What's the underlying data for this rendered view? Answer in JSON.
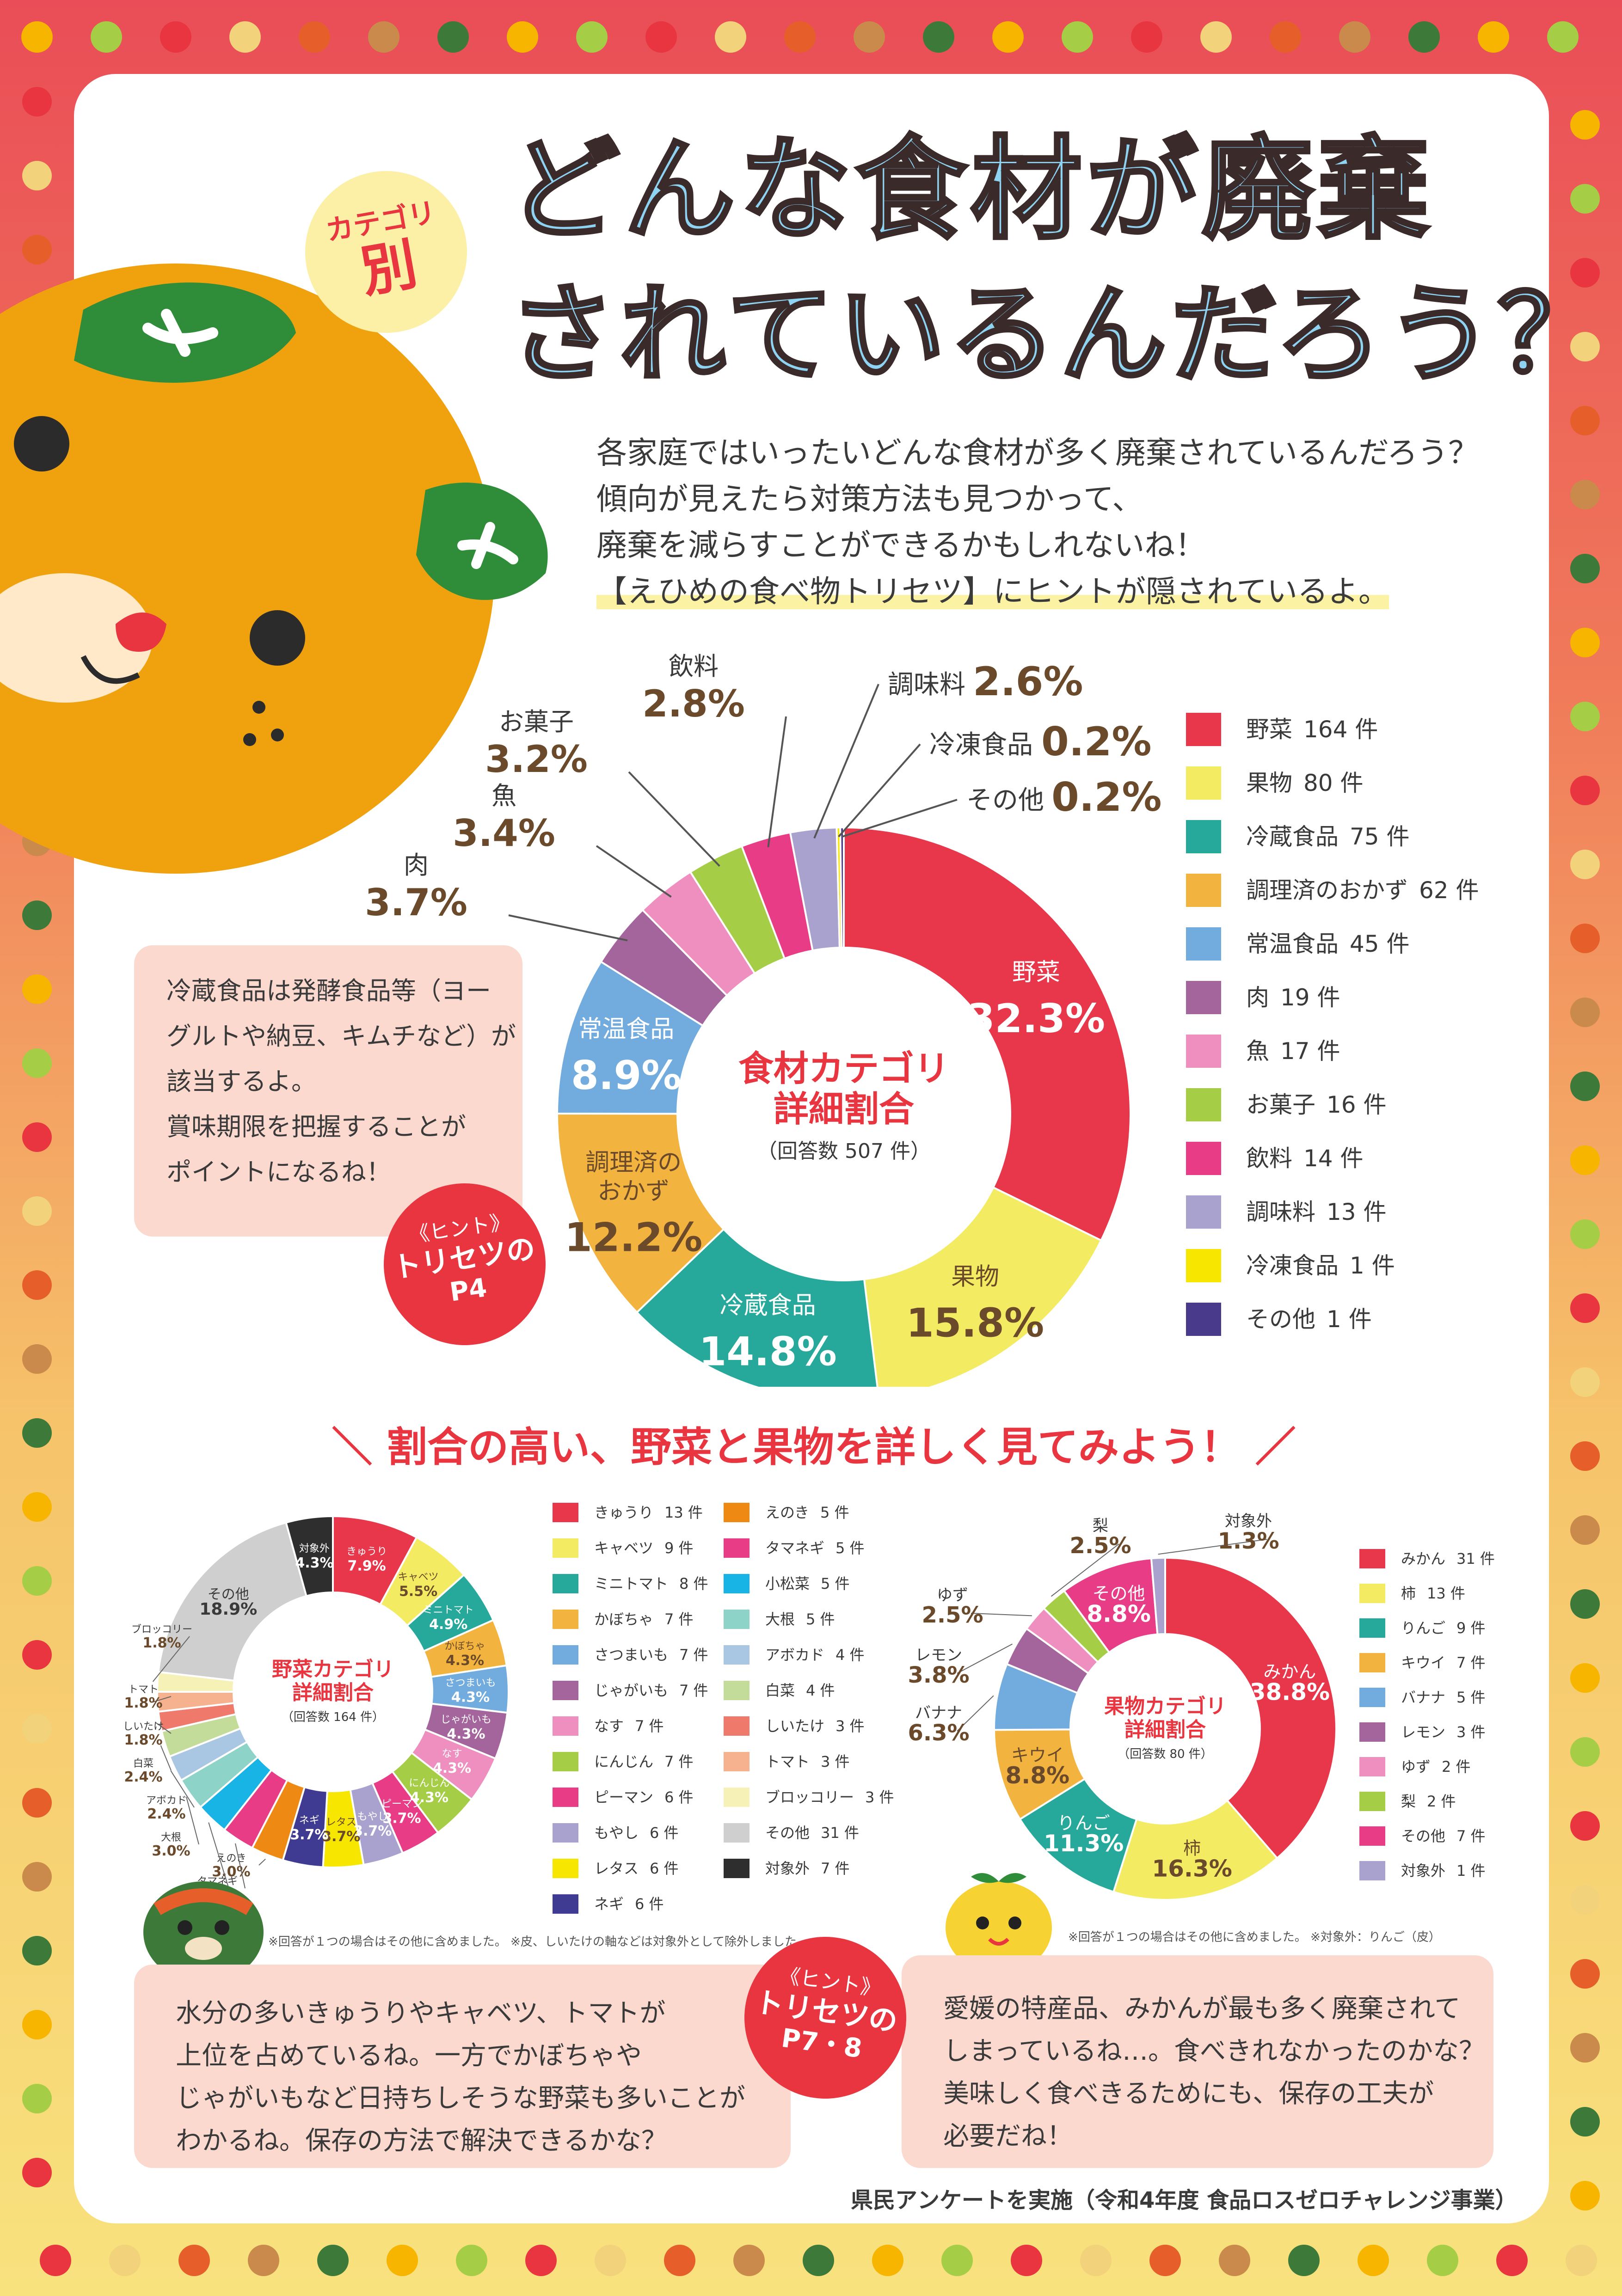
{
  "header": {
    "category_badge_line1": "カテゴリ",
    "category_badge_line2": "別",
    "title_line1": "どんな食材が廃棄",
    "title_line2": "されているんだろう？"
  },
  "intro": {
    "line1": "各家庭ではいったいどんな食材が多く廃棄されているんだろう？",
    "line2": "傾向が見えたら対策方法も見つかって、",
    "line3": "廃棄を減らすことができるかもしれないね！",
    "line4": "【えひめの食べ物トリセツ】にヒントが隠されているよ。"
  },
  "notes": {
    "refrigerated": [
      "冷蔵食品は発酵食品等（ヨー",
      "グルトや納豆、キムチなど）が",
      "該当するよ。",
      "賞味期限を把握することが",
      "ポイントになるね！"
    ],
    "vegetables": [
      "水分の多いきゅうりやキャベツ、トマトが",
      "上位を占めているね。一方でかぼちゃや",
      "じゃがいもなど日持ちしそうな野菜も多いことが",
      "わかるね。保存の方法で解決できるかな？"
    ],
    "fruits": [
      "愛媛の特産品、みかんが最も多く廃棄されて",
      "しまっているね…。食べきれなかったのかな？",
      "美味しく食べきるためにも、保存の工夫が",
      "必要だね！"
    ]
  },
  "badges": {
    "hint1": {
      "l1": "《ヒント》",
      "l2": "トリセツの",
      "l3": "P4"
    },
    "hint2": {
      "l1": "《ヒント》",
      "l2": "トリセツの",
      "l3": "P7・8"
    }
  },
  "section_heading": "＼ 割合の高い、野菜と果物を詳しく見てみよう！ ／",
  "footnotes": {
    "veg": "※回答が１つの場合はその他に含めました。 ※皮、しいたけの軸などは対象外として除外しました。",
    "fruit": "※回答が１つの場合はその他に含めました。 ※対象外：りんご（皮）",
    "survey": "県民アンケートを実施（令和4年度 食品ロスゼロチャレンジ事業）"
  },
  "colors": {
    "frame_top": "#ea4d57",
    "frame_bottom": "#f8e27e",
    "accent_red": "#e8353f",
    "title_blue": "#8fd3f3",
    "note_bg": "#fbd9cf"
  },
  "icons": [
    "mikan-mascot-icon",
    "carrot-icon",
    "tomato-icon",
    "mushroom-icon",
    "broccoli-icon",
    "fish-icon",
    "egg-icon",
    "potato-icon"
  ],
  "chart_data": [
    {
      "type": "donut",
      "center_title_line1": "食材カテゴリ",
      "center_title_line2": "詳細割合",
      "center_subtitle": "（回答数 507 件）",
      "slices": [
        {
          "label": "野菜",
          "count": "164 件",
          "count_value": 164,
          "pct": "32.3%",
          "value": 32.3,
          "color": "#e8364b"
        },
        {
          "label": "果物",
          "count": "80 件",
          "count_value": 80,
          "pct": "15.8%",
          "value": 15.8,
          "color": "#f3eb62"
        },
        {
          "label": "冷蔵食品",
          "count": "75 件",
          "count_value": 75,
          "pct": "14.8%",
          "value": 14.8,
          "color": "#26a99a"
        },
        {
          "label": "調理済のおかず",
          "label_lines": [
            "調理済の",
            "おかず"
          ],
          "count": "62 件",
          "count_value": 62,
          "pct": "12.2%",
          "value": 12.2,
          "color": "#f2b43f"
        },
        {
          "label": "常温食品",
          "count": "45 件",
          "count_value": 45,
          "pct": "8.9%",
          "value": 8.9,
          "color": "#72acdf"
        },
        {
          "label": "肉",
          "count": "19 件",
          "count_value": 19,
          "pct": "3.7%",
          "value": 3.7,
          "color": "#a4659c"
        },
        {
          "label": "魚",
          "count": "17 件",
          "count_value": 17,
          "pct": "3.4%",
          "value": 3.4,
          "color": "#ee8fc0"
        },
        {
          "label": "お菓子",
          "count": "16 件",
          "count_value": 16,
          "pct": "3.2%",
          "value": 3.2,
          "color": "#a5cd45"
        },
        {
          "label": "飲料",
          "count": "14 件",
          "count_value": 14,
          "pct": "2.8%",
          "value": 2.8,
          "color": "#e83d86"
        },
        {
          "label": "調味料",
          "count": "13 件",
          "count_value": 13,
          "pct": "2.6%",
          "value": 2.6,
          "color": "#a9a2cf"
        },
        {
          "label": "冷凍食品",
          "count": "1 件",
          "count_value": 1,
          "pct": "0.2%",
          "value": 0.2,
          "color": "#f7e600"
        },
        {
          "label": "その他",
          "count": "1 件",
          "count_value": 1,
          "pct": "0.2%",
          "value": 0.2,
          "color": "#4a3a8c"
        }
      ]
    },
    {
      "type": "donut",
      "center_title_line1": "野菜カテゴリ",
      "center_title_line2": "詳細割合",
      "center_subtitle": "（回答数 164 件）",
      "slices": [
        {
          "label": "きゅうり",
          "count": "13 件",
          "count_value": 13,
          "pct": "7.9%",
          "value": 7.9,
          "color": "#e8364b"
        },
        {
          "label": "キャベツ",
          "count": "9 件",
          "count_value": 9,
          "pct": "5.5%",
          "value": 5.5,
          "color": "#f3eb62"
        },
        {
          "label": "ミニトマト",
          "count": "8 件",
          "count_value": 8,
          "pct": "4.9%",
          "value": 4.9,
          "color": "#26a99a"
        },
        {
          "label": "かぼちゃ",
          "count": "7 件",
          "count_value": 7,
          "pct": "4.3%",
          "value": 4.3,
          "color": "#f2b43f"
        },
        {
          "label": "さつまいも",
          "count": "7 件",
          "count_value": 7,
          "pct": "4.3%",
          "value": 4.3,
          "color": "#72acdf"
        },
        {
          "label": "じゃがいも",
          "count": "7 件",
          "count_value": 7,
          "pct": "4.3%",
          "value": 4.3,
          "color": "#a4659c"
        },
        {
          "label": "なす",
          "count": "7 件",
          "count_value": 7,
          "pct": "4.3%",
          "value": 4.3,
          "color": "#ee8fc0"
        },
        {
          "label": "にんじん",
          "count": "7 件",
          "count_value": 7,
          "pct": "4.3%",
          "value": 4.3,
          "color": "#a5cd45"
        },
        {
          "label": "ピーマン",
          "count": "6 件",
          "count_value": 6,
          "pct": "3.7%",
          "value": 3.7,
          "color": "#e83d86"
        },
        {
          "label": "もやし",
          "count": "6 件",
          "count_value": 6,
          "pct": "3.7%",
          "value": 3.7,
          "color": "#a9a2cf"
        },
        {
          "label": "レタス",
          "count": "6 件",
          "count_value": 6,
          "pct": "3.7%",
          "value": 3.7,
          "color": "#f7e600"
        },
        {
          "label": "ネギ",
          "count": "6 件",
          "count_value": 6,
          "pct": "3.7%",
          "value": 3.7,
          "color": "#3f3a92"
        },
        {
          "label": "えのき",
          "count": "5 件",
          "count_value": 5,
          "pct": "3.0%",
          "value": 3.0,
          "color": "#ee8a13"
        },
        {
          "label": "タマネギ",
          "count": "5 件",
          "count_value": 5,
          "pct": "3.0%",
          "value": 3.0,
          "color": "#e83d86"
        },
        {
          "label": "小松菜",
          "count": "5 件",
          "count_value": 5,
          "pct": "3.0%",
          "value": 3.0,
          "color": "#19b4e6"
        },
        {
          "label": "大根",
          "count": "5 件",
          "count_value": 5,
          "pct": "3.0%",
          "value": 3.0,
          "color": "#8ed3c8"
        },
        {
          "label": "アボカド",
          "count": "4 件",
          "count_value": 4,
          "pct": "2.4%",
          "value": 2.4,
          "color": "#a9c7e3"
        },
        {
          "label": "白菜",
          "count": "4 件",
          "count_value": 4,
          "pct": "2.4%",
          "value": 2.4,
          "color": "#c4dc9a"
        },
        {
          "label": "しいたけ",
          "count": "3 件",
          "count_value": 3,
          "pct": "1.8%",
          "value": 1.8,
          "color": "#ef7a6b"
        },
        {
          "label": "トマト",
          "count": "3 件",
          "count_value": 3,
          "pct": "1.8%",
          "value": 1.8,
          "color": "#f6b28f"
        },
        {
          "label": "ブロッコリー",
          "count": "3 件",
          "count_value": 3,
          "pct": "1.8%",
          "value": 1.8,
          "color": "#f6f1b6"
        },
        {
          "label": "その他",
          "count": "31 件",
          "count_value": 31,
          "pct": "18.9%",
          "value": 18.9,
          "color": "#cfcfcf"
        },
        {
          "label": "対象外",
          "count": "7 件",
          "count_value": 7,
          "pct": "4.3%",
          "value": 4.3,
          "color": "#2e2e2e"
        }
      ]
    },
    {
      "type": "donut",
      "center_title_line1": "果物カテゴリ",
      "center_title_line2": "詳細割合",
      "center_subtitle": "（回答数 80 件）",
      "slices": [
        {
          "label": "みかん",
          "count": "31 件",
          "count_value": 31,
          "pct": "38.8%",
          "value": 38.8,
          "color": "#e8364b"
        },
        {
          "label": "柿",
          "count": "13 件",
          "count_value": 13,
          "pct": "16.3%",
          "value": 16.3,
          "color": "#f3eb62"
        },
        {
          "label": "りんご",
          "count": "9 件",
          "count_value": 9,
          "pct": "11.3%",
          "value": 11.3,
          "color": "#26a99a"
        },
        {
          "label": "キウイ",
          "count": "7 件",
          "count_value": 7,
          "pct": "8.8%",
          "value": 8.8,
          "color": "#f2b43f"
        },
        {
          "label": "バナナ",
          "count": "5 件",
          "count_value": 5,
          "pct": "6.3%",
          "value": 6.3,
          "color": "#72acdf"
        },
        {
          "label": "レモン",
          "count": "3 件",
          "count_value": 3,
          "pct": "3.8%",
          "value": 3.8,
          "color": "#a4659c"
        },
        {
          "label": "ゆず",
          "count": "2 件",
          "count_value": 2,
          "pct": "2.5%",
          "value": 2.5,
          "color": "#ee8fc0"
        },
        {
          "label": "梨",
          "count": "2 件",
          "count_value": 2,
          "pct": "2.5%",
          "value": 2.5,
          "color": "#a5cd45"
        },
        {
          "label": "その他",
          "count": "7 件",
          "count_value": 7,
          "pct": "8.8%",
          "value": 8.8,
          "color": "#e83d86"
        },
        {
          "label": "対象外",
          "count": "1 件",
          "count_value": 1,
          "pct": "1.3%",
          "value": 1.3,
          "color": "#a9a2cf"
        }
      ]
    }
  ]
}
